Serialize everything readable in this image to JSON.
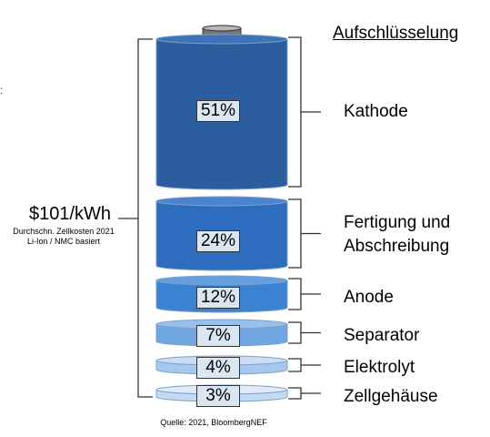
{
  "chart_data": {
    "type": "stacked-cylinder",
    "title": "",
    "total": {
      "value": "$101/kWh",
      "note_lines": [
        "Durchschn. Zellkosten 2021",
        "Li-Ion / NMC basiert"
      ]
    },
    "breakdown_heading": "Aufschlüsselung",
    "unit": "%",
    "segments": [
      {
        "category": "Kathode",
        "value": 51,
        "label": "51%",
        "color": "#2c5d9e",
        "top_color": "#3e73b6"
      },
      {
        "category": "Fertigung und Abschreibung",
        "value": 24,
        "label": "24%",
        "color": "#2e6cbf",
        "top_color": "#4a84cf"
      },
      {
        "category": "Anode",
        "value": 12,
        "label": "12%",
        "color": "#3b82d3",
        "top_color": "#62a0e2"
      },
      {
        "category": "Separator",
        "value": 7,
        "label": "7%",
        "color": "#70a6e0",
        "top_color": "#97c0ec"
      },
      {
        "category": "Elektrolyt",
        "value": 4,
        "label": "4%",
        "color": "#a6c8ec",
        "top_color": "#c9def4"
      },
      {
        "category": "Zellgehäuse",
        "value": 3,
        "label": "3%",
        "color": "#c3daf3",
        "top_color": "#dfeaf8"
      }
    ],
    "source": "Quelle: 2021, BloombergNEF"
  },
  "icons": {
    "terminal": "battery-terminal-icon"
  }
}
